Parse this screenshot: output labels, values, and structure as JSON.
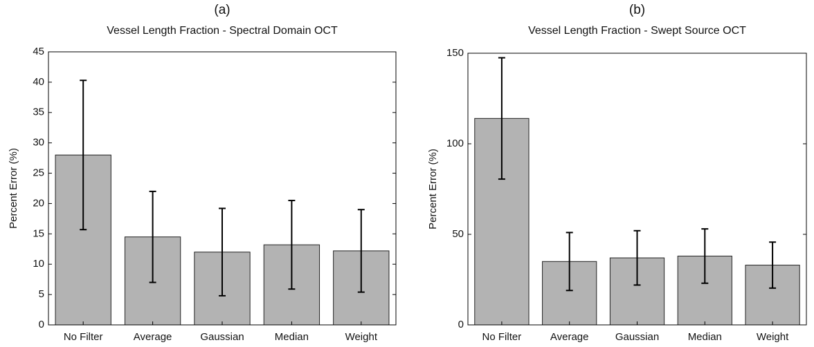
{
  "chart_data": [
    {
      "type": "bar",
      "panel_label": "(a)",
      "title": "Vessel Length Fraction - Spectral Domain OCT",
      "y_label": "Percent Error (%)",
      "categories": [
        "No Filter",
        "Average",
        "Gaussian",
        "Median",
        "Weight"
      ],
      "values": [
        28,
        14.5,
        12,
        13.2,
        12.2
      ],
      "errors": [
        12.3,
        7.5,
        7.2,
        7.3,
        6.8
      ],
      "color": "#b3b3b3",
      "ylim": [
        0,
        45
      ],
      "yticks": [
        0,
        5,
        10,
        15,
        20,
        25,
        30,
        35,
        40,
        45
      ]
    },
    {
      "type": "bar",
      "panel_label": "(b)",
      "title": "Vessel Length Fraction - Swept Source OCT",
      "y_label": "Percent Error (%)",
      "categories": [
        "No Filter",
        "Average",
        "Gaussian",
        "Median",
        "Weight"
      ],
      "values": [
        114,
        35,
        37,
        38,
        33
      ],
      "errors": [
        33.5,
        16,
        15,
        15,
        12.7
      ],
      "color": "#b3b3b3",
      "ylim": [
        0,
        150
      ],
      "yticks": [
        0,
        50,
        100,
        150
      ]
    }
  ]
}
